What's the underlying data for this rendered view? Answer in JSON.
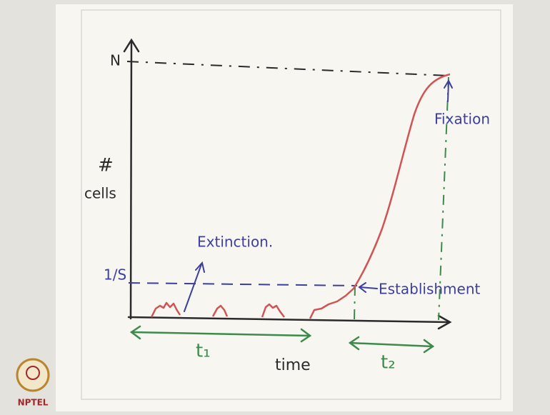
{
  "axes": {
    "y_label_symbol": "#",
    "y_label": "cells",
    "x_label": "time"
  },
  "levels": {
    "top": "N",
    "threshold": "1/S"
  },
  "annotations": {
    "extinction": "Extinction.",
    "establishment": "Establishment",
    "fixation": "Fixation"
  },
  "intervals": {
    "first": "t₁",
    "second": "t₂"
  },
  "logo": "NPTEL"
}
